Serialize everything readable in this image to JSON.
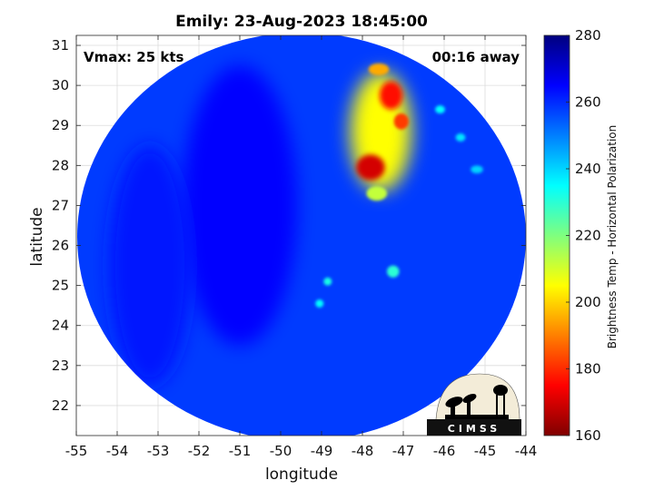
{
  "chart_data": {
    "type": "heatmap",
    "title": "Emily: 23-Aug-2023 18:45:00",
    "xlabel": "longitude",
    "ylabel": "latitude",
    "xlim": [
      -55,
      -44
    ],
    "ylim": [
      21.25,
      31.25
    ],
    "xticks": [
      -55,
      -54,
      -53,
      -52,
      -51,
      -50,
      -49,
      -48,
      -47,
      -46,
      -45,
      -44
    ],
    "yticks": [
      22,
      23,
      24,
      25,
      26,
      27,
      28,
      29,
      30,
      31
    ],
    "grid": true,
    "annotations": {
      "left": "Vmax: 25 kts",
      "right": "00:16 away"
    },
    "colorbar": {
      "label": "Brightness Temp - Horizontal Polarization",
      "min": 160,
      "max": 280,
      "ticks": [
        160,
        180,
        200,
        220,
        240,
        260,
        280
      ]
    },
    "background_value": 258,
    "features": [
      {
        "lon": -47.55,
        "lat": 28.85,
        "value": 205,
        "extent": [
          0.75,
          1.5
        ]
      },
      {
        "lon": -47.3,
        "lat": 29.75,
        "value": 176,
        "extent": [
          0.28,
          0.35
        ]
      },
      {
        "lon": -47.8,
        "lat": 27.95,
        "value": 170,
        "extent": [
          0.35,
          0.32
        ]
      },
      {
        "lon": -47.05,
        "lat": 29.1,
        "value": 182,
        "extent": [
          0.18,
          0.2
        ]
      },
      {
        "lon": -47.6,
        "lat": 30.4,
        "value": 195,
        "extent": [
          0.25,
          0.15
        ]
      },
      {
        "lon": -47.65,
        "lat": 27.3,
        "value": 212,
        "extent": [
          0.25,
          0.18
        ]
      },
      {
        "lon": -47.25,
        "lat": 25.35,
        "value": 230,
        "extent": [
          0.15,
          0.15
        ]
      },
      {
        "lon": -48.85,
        "lat": 25.1,
        "value": 232,
        "extent": [
          0.1,
          0.1
        ]
      },
      {
        "lon": -49.05,
        "lat": 24.55,
        "value": 235,
        "extent": [
          0.1,
          0.1
        ]
      },
      {
        "lon": -46.1,
        "lat": 29.4,
        "value": 235,
        "extent": [
          0.12,
          0.1
        ]
      },
      {
        "lon": -45.6,
        "lat": 28.7,
        "value": 238,
        "extent": [
          0.12,
          0.1
        ]
      },
      {
        "lon": -45.2,
        "lat": 27.9,
        "value": 240,
        "extent": [
          0.15,
          0.1
        ]
      },
      {
        "lon": -51.0,
        "lat": 27.0,
        "value": 265,
        "extent": [
          1.4,
          3.5
        ]
      },
      {
        "lon": -53.2,
        "lat": 25.5,
        "value": 262,
        "extent": [
          1.0,
          3.0
        ]
      }
    ]
  },
  "logo": {
    "text": "CIMSS"
  }
}
